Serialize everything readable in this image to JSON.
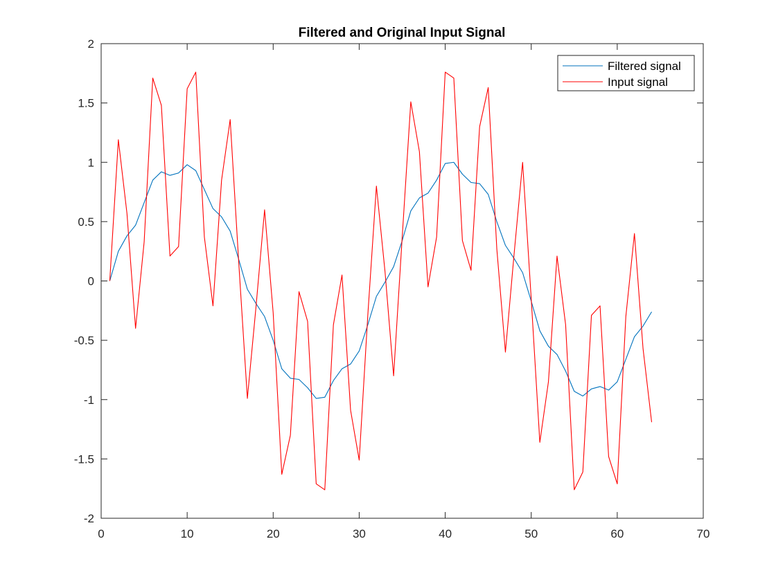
{
  "chart_data": {
    "type": "line",
    "title": "Filtered and Original Input Signal",
    "xlabel": "",
    "ylabel": "",
    "xlim": [
      0,
      70
    ],
    "ylim": [
      -2,
      2
    ],
    "xticks": [
      0,
      10,
      20,
      30,
      40,
      50,
      60,
      70
    ],
    "yticks": [
      -2,
      -1.5,
      -1,
      -0.5,
      0,
      0.5,
      1,
      1.5,
      2
    ],
    "xtick_labels": [
      "0",
      "10",
      "20",
      "30",
      "40",
      "50",
      "60",
      "70"
    ],
    "ytick_labels": [
      "-2",
      "-1.5",
      "-1",
      "-0.5",
      "0",
      "0.5",
      "1",
      "1.5",
      "2"
    ],
    "grid": false,
    "legend_position": "top-right",
    "x": [
      1,
      2,
      3,
      4,
      5,
      6,
      7,
      8,
      9,
      10,
      11,
      12,
      13,
      14,
      15,
      16,
      17,
      18,
      19,
      20,
      21,
      22,
      23,
      24,
      25,
      26,
      27,
      28,
      29,
      30,
      31,
      32,
      33,
      34,
      35,
      36,
      37,
      38,
      39,
      40,
      41,
      42,
      43,
      44,
      45,
      46,
      47,
      48,
      49,
      50,
      51,
      52,
      53,
      54,
      55,
      56,
      57,
      58,
      59,
      60,
      61,
      62,
      63,
      64
    ],
    "series": [
      {
        "name": "Filtered signal",
        "color": "#0072bd",
        "values": [
          0,
          0.25,
          0.38,
          0.47,
          0.66,
          0.85,
          0.92,
          0.89,
          0.91,
          0.98,
          0.93,
          0.77,
          0.61,
          0.54,
          0.42,
          0.18,
          -0.07,
          -0.19,
          -0.3,
          -0.5,
          -0.74,
          -0.82,
          -0.83,
          -0.9,
          -0.99,
          -0.98,
          -0.84,
          -0.74,
          -0.7,
          -0.59,
          -0.37,
          -0.13,
          -0.01,
          0.12,
          0.34,
          0.59,
          0.7,
          0.74,
          0.85,
          0.99,
          1.0,
          0.9,
          0.83,
          0.82,
          0.73,
          0.5,
          0.3,
          0.19,
          0.07,
          -0.17,
          -0.42,
          -0.55,
          -0.62,
          -0.76,
          -0.93,
          -0.97,
          -0.91,
          -0.89,
          -0.92,
          -0.85,
          -0.66,
          -0.47,
          -0.38,
          -0.26
        ]
      },
      {
        "name": "Input signal",
        "color": "#ff0000",
        "values": [
          0,
          1.19,
          0.57,
          -0.4,
          0.33,
          1.71,
          1.48,
          0.21,
          0.29,
          1.62,
          1.76,
          0.37,
          -0.21,
          0.85,
          1.36,
          0.15,
          -0.99,
          -0.22,
          0.6,
          -0.27,
          -1.63,
          -1.3,
          -0.09,
          -0.34,
          -1.71,
          -1.76,
          -0.37,
          0.05,
          -1.09,
          -1.51,
          -0.29,
          0.8,
          0.08,
          -0.8,
          0.37,
          1.51,
          1.09,
          -0.05,
          0.37,
          1.76,
          1.71,
          0.34,
          0.09,
          1.3,
          1.63,
          0.27,
          -0.6,
          0.22,
          1.0,
          -0.15,
          -1.36,
          -0.85,
          0.21,
          -0.37,
          -1.76,
          -1.61,
          -0.29,
          -0.21,
          -1.48,
          -1.71,
          -0.3,
          0.4,
          -0.57,
          -1.19
        ]
      }
    ]
  }
}
